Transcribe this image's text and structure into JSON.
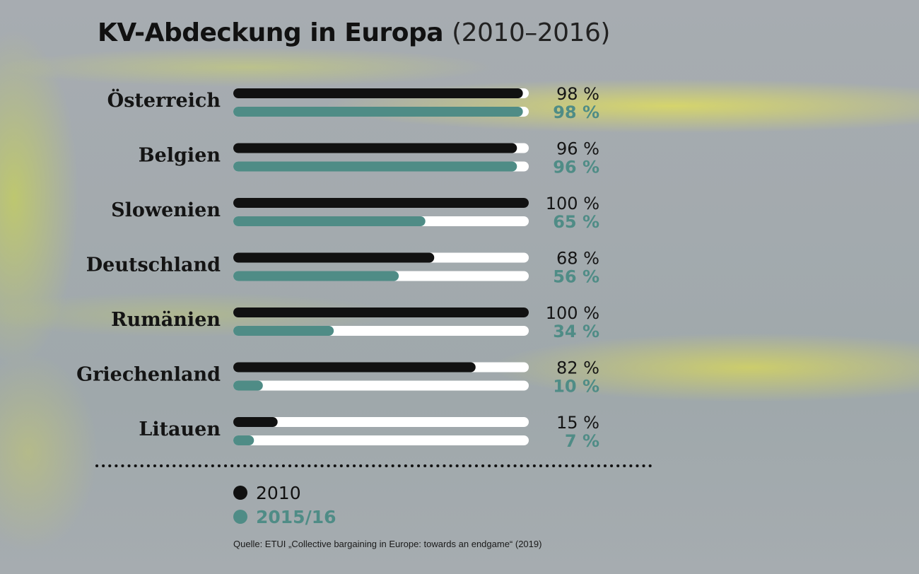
{
  "title": "KV-Abdeckung in Europa",
  "title_range": "(2010–2016)",
  "colors": {
    "series_2010": "#111111",
    "series_2015": "#4f8c86",
    "track": "#ffffff"
  },
  "chart_data": {
    "type": "bar",
    "orientation": "horizontal",
    "categories": [
      "Österreich",
      "Belgien",
      "Slowenien",
      "Deutschland",
      "Rumänien",
      "Griechenland",
      "Litauen"
    ],
    "series": [
      {
        "name": "2010",
        "values": [
          98,
          96,
          100,
          68,
          100,
          82,
          15
        ],
        "labels": [
          "98 %",
          "96 %",
          "100 %",
          "68 %",
          "100 %",
          "82 %",
          "15 %"
        ]
      },
      {
        "name": "2015/16",
        "values": [
          98,
          96,
          65,
          56,
          34,
          10,
          7
        ],
        "labels": [
          "98 %",
          "96 %",
          "65 %",
          "56 %",
          "34 %",
          "10 %",
          "7 %"
        ]
      }
    ],
    "xlim": [
      0,
      100
    ],
    "grid": false,
    "legend_position": "bottom-left"
  },
  "legend": [
    {
      "label": "2010"
    },
    {
      "label": "2015/16"
    }
  ],
  "source": "Quelle: ETUI „Collective bargaining in Europe: towards an endgame“ (2019)"
}
